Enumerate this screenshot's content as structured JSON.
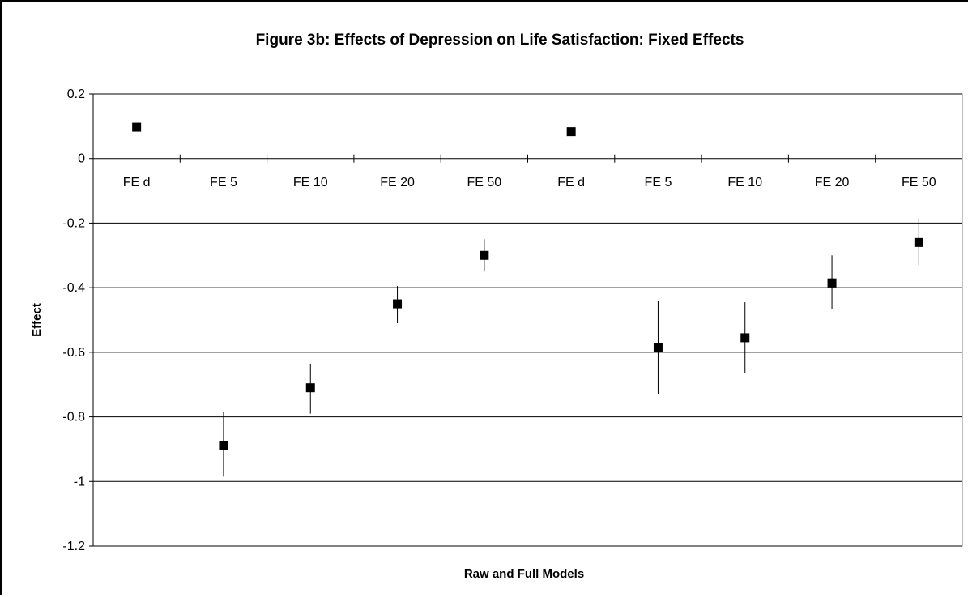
{
  "chart_data": {
    "type": "scatter",
    "title": "Figure 3b: Effects of Depression on Life Satisfaction: Fixed Effects",
    "xlabel": "Raw and Full Models",
    "ylabel": "Effect",
    "ylim": [
      -1.2,
      0.2
    ],
    "yticks": [
      0.2,
      0,
      -0.2,
      -0.4,
      -0.6,
      -0.8,
      -1,
      -1.2
    ],
    "ytick_labels": [
      "0.2",
      "0",
      "-0.2",
      "-0.4",
      "-0.6",
      "-0.8",
      "-1",
      "-1.2"
    ],
    "grid": true,
    "categories": [
      "FE d",
      "FE 5",
      "FE 10",
      "FE 20",
      "FE 50",
      "FE d",
      "FE 5",
      "FE 10",
      "FE 20",
      "FE 50"
    ],
    "values": [
      0.097,
      -0.89,
      -0.71,
      -0.45,
      -0.3,
      0.083,
      -0.585,
      -0.555,
      -0.385,
      -0.26
    ],
    "error_low": [
      0.097,
      -0.985,
      -0.79,
      -0.51,
      -0.35,
      0.083,
      -0.73,
      -0.665,
      -0.465,
      -0.33
    ],
    "error_high": [
      0.097,
      -0.785,
      -0.635,
      -0.395,
      -0.25,
      0.083,
      -0.44,
      -0.445,
      -0.3,
      -0.185
    ]
  }
}
